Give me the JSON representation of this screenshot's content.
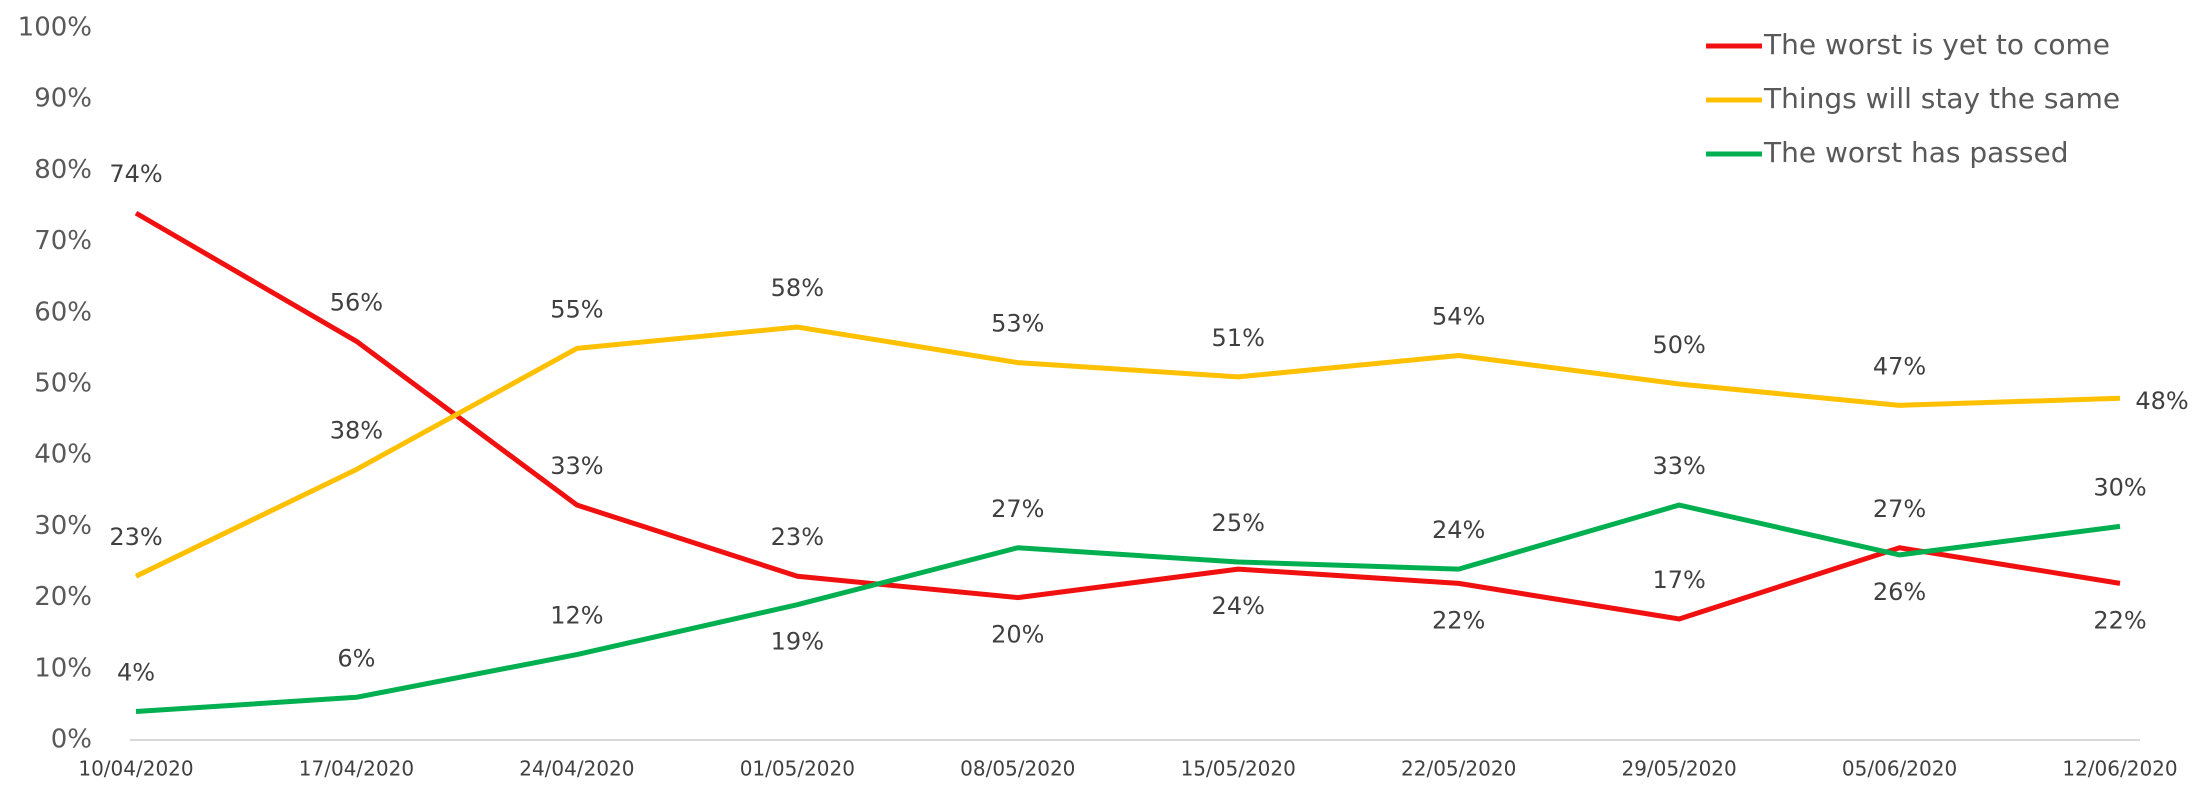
{
  "chart_data": {
    "type": "line",
    "categories": [
      "10/04/2020",
      "17/04/2020",
      "24/04/2020",
      "01/05/2020",
      "08/05/2020",
      "15/05/2020",
      "22/05/2020",
      "29/05/2020",
      "05/06/2020",
      "12/06/2020"
    ],
    "series": [
      {
        "name": "The worst is yet to come",
        "color": "#f01010",
        "values": [
          74,
          56,
          33,
          23,
          20,
          24,
          22,
          17,
          27,
          22
        ],
        "value_labels": [
          "74%",
          "56%",
          "33%",
          "23%",
          "20%",
          "24%",
          "22%",
          "17%",
          "27%",
          "22%"
        ]
      },
      {
        "name": "Things will stay the same",
        "color": "#ffc000",
        "values": [
          23,
          38,
          55,
          58,
          53,
          51,
          54,
          50,
          47,
          48
        ],
        "value_labels": [
          "23%",
          "38%",
          "55%",
          "58%",
          "53%",
          "51%",
          "54%",
          "50%",
          "47%",
          "48%"
        ]
      },
      {
        "name": "The worst has passed",
        "color": "#00b050",
        "values": [
          4,
          6,
          12,
          19,
          27,
          25,
          24,
          33,
          26,
          30
        ],
        "value_labels": [
          "4%",
          "6%",
          "12%",
          "19%",
          "27%",
          "25%",
          "24%",
          "33%",
          "26%",
          "30%"
        ]
      }
    ],
    "ylim": [
      0,
      100
    ],
    "yticks": [
      {
        "value": 0,
        "label": "0%"
      },
      {
        "value": 10,
        "label": "10%"
      },
      {
        "value": 20,
        "label": "20%"
      },
      {
        "value": 30,
        "label": "30%"
      },
      {
        "value": 40,
        "label": "40%"
      },
      {
        "value": 50,
        "label": "50%"
      },
      {
        "value": 60,
        "label": "60%"
      },
      {
        "value": 70,
        "label": "70%"
      },
      {
        "value": 80,
        "label": "80%"
      },
      {
        "value": 90,
        "label": "90%"
      },
      {
        "value": 100,
        "label": "100%"
      }
    ],
    "legend": "top-right"
  }
}
